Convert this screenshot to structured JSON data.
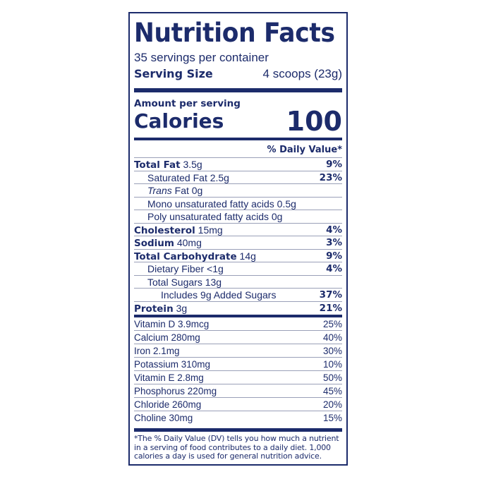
{
  "title": "Nutrition Facts",
  "servings_per_container": "35 servings per container",
  "serving_size": {
    "label": "Serving Size",
    "value": "4 scoops (23g)"
  },
  "amount_per_serving": "Amount per serving",
  "calories": {
    "label": "Calories",
    "value": "100"
  },
  "dv_header": "% Daily Value*",
  "nutrients": [
    {
      "name": "Total Fat",
      "amount": "3.5g",
      "dv": "9%"
    },
    {
      "name": "Saturated Fat",
      "amount": "2.5g",
      "dv": "23%"
    },
    {
      "name": "Trans",
      "amount": "Fat 0g",
      "dv": ""
    },
    {
      "name": "Mono unsaturated fatty acids",
      "amount": "0.5g",
      "dv": ""
    },
    {
      "name": "Poly unsaturated fatty acids",
      "amount": "0g",
      "dv": ""
    },
    {
      "name": "Cholesterol",
      "amount": "15mg",
      "dv": "4%"
    },
    {
      "name": "Sodium",
      "amount": "40mg",
      "dv": "3%"
    },
    {
      "name": "Total Carbohydrate",
      "amount": "14g",
      "dv": "9%"
    },
    {
      "name": "Dietary Fiber",
      "amount": "<1g",
      "dv": "4%"
    },
    {
      "name": "Total Sugars",
      "amount": "13g",
      "dv": ""
    },
    {
      "name": "Includes 9g Added Sugars",
      "amount": "",
      "dv": "37%"
    },
    {
      "name": "Protein",
      "amount": "3g",
      "dv": "21%"
    }
  ],
  "vitamins": [
    {
      "label": "Vitamin D 3.9mcg",
      "dv": "25%"
    },
    {
      "label": "Calcium 280mg",
      "dv": "40%"
    },
    {
      "label": "Iron 2.1mg",
      "dv": "30%"
    },
    {
      "label": "Potassium 310mg",
      "dv": "10%"
    },
    {
      "label": "Vitamin E 2.8mg",
      "dv": "50%"
    },
    {
      "label": "Phosphorus 220mg",
      "dv": "45%"
    },
    {
      "label": "Chloride 260mg",
      "dv": "20%"
    },
    {
      "label": "Choline 30mg",
      "dv": "15%"
    }
  ],
  "footnote": "*The % Daily Value (DV) tells you how much a nutrient in a serving of food contributes to a daily diet. 1,000 calories a day is used for general nutrition advice.",
  "colors": {
    "ink": "#1c2b6b"
  }
}
